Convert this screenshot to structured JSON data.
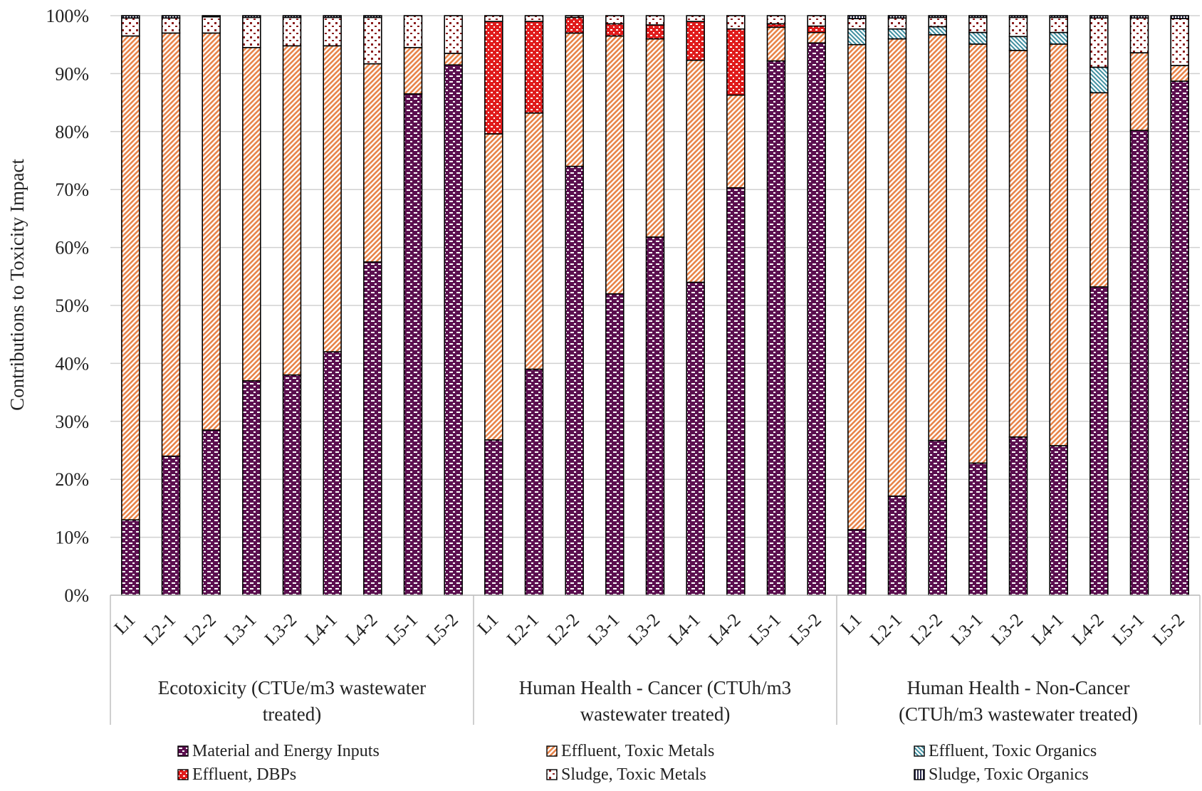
{
  "chart_data": {
    "type": "bar",
    "stacked": true,
    "ylabel": "Contributions to Toxicity Impact",
    "ylim": [
      0,
      100
    ],
    "y_ticks": [
      "0%",
      "10%",
      "20%",
      "30%",
      "40%",
      "50%",
      "60%",
      "70%",
      "80%",
      "90%",
      "100%"
    ],
    "grid": true,
    "legend_position": "bottom",
    "categories": [
      "L1",
      "L2-1",
      "L2-2",
      "L3-1",
      "L3-2",
      "L4-1",
      "L4-2",
      "L5-1",
      "L5-2"
    ],
    "groups": [
      {
        "label_lines": [
          "Ecotoxicity (CTUe/m3 wastewater",
          "treated)"
        ],
        "series_values": {
          "material_energy": [
            13,
            24,
            28.5,
            37,
            38,
            42,
            57.5,
            86.5,
            91.5
          ],
          "effluent_metals": [
            83.5,
            73,
            68.5,
            57.5,
            56.8,
            52.8,
            34.2,
            8,
            2
          ],
          "effluent_organics": [
            0,
            0,
            0,
            0,
            0,
            0,
            0,
            0,
            0
          ],
          "effluent_dbps": [
            0,
            0,
            0,
            0,
            0,
            0,
            0,
            0,
            0
          ],
          "sludge_metals": [
            3.1,
            2.6,
            2.8,
            5.2,
            4.9,
            4.9,
            8.0,
            5.5,
            6.5
          ],
          "sludge_organics": [
            0.4,
            0.4,
            0.2,
            0.3,
            0.3,
            0.3,
            0.3,
            0,
            0
          ]
        }
      },
      {
        "label_lines": [
          "Human Health - Cancer (CTUh/m3",
          "wastewater treated)"
        ],
        "series_values": {
          "material_energy": [
            26.8,
            39,
            74,
            52,
            61.8,
            54,
            70.3,
            92.2,
            95.3
          ],
          "effluent_metals": [
            52.8,
            44.2,
            23,
            44.5,
            34.2,
            38.3,
            16,
            5.8,
            1.8
          ],
          "effluent_organics": [
            0,
            0,
            0,
            0,
            0,
            0,
            0,
            0,
            0
          ],
          "effluent_dbps": [
            19.4,
            15.8,
            2.7,
            2.1,
            2.4,
            6.7,
            11.4,
            0.6,
            1.1
          ],
          "sludge_metals": [
            1,
            1,
            0.3,
            1.4,
            1.6,
            1,
            2.3,
            1.4,
            1.8
          ],
          "sludge_organics": [
            0,
            0,
            0,
            0,
            0,
            0,
            0,
            0,
            0
          ]
        }
      },
      {
        "label_lines": [
          "Human Health - Non-Cancer",
          "(CTUh/m3 wastewater treated)"
        ],
        "series_values": {
          "material_energy": [
            11.3,
            17.1,
            26.7,
            22.8,
            27.3,
            25.8,
            53.2,
            80.2,
            88.7
          ],
          "effluent_metals": [
            83.7,
            78.9,
            70,
            72.3,
            66.7,
            69.3,
            33.5,
            13.4,
            2.7
          ],
          "effluent_organics": [
            2.7,
            1.7,
            1.4,
            2,
            2.4,
            2,
            4.4,
            0,
            0
          ],
          "effluent_dbps": [
            0,
            0,
            0,
            0,
            0,
            0,
            0,
            0,
            0
          ],
          "sludge_metals": [
            1.8,
            1.9,
            1.6,
            2.6,
            3.3,
            2.6,
            8.5,
            6.0,
            8.1
          ],
          "sludge_organics": [
            0.5,
            0.4,
            0.3,
            0.3,
            0.3,
            0.3,
            0.4,
            0.4,
            0.5
          ]
        }
      }
    ],
    "series": [
      {
        "key": "material_energy",
        "name": "Material and Energy Inputs",
        "color": "#5b0f4f"
      },
      {
        "key": "effluent_metals",
        "name": "Effluent, Toxic Metals",
        "color": "#e8844a"
      },
      {
        "key": "effluent_organics",
        "name": "Effluent, Toxic Organics",
        "color": "#3f8fa0"
      },
      {
        "key": "effluent_dbps",
        "name": "Effluent, DBPs",
        "color": "#e01b1b"
      },
      {
        "key": "sludge_metals",
        "name": "Sludge, Toxic Metals",
        "color": "#8b1e1e"
      },
      {
        "key": "sludge_organics",
        "name": "Sludge, Toxic Organics",
        "color": "#2a2a4a"
      }
    ]
  }
}
